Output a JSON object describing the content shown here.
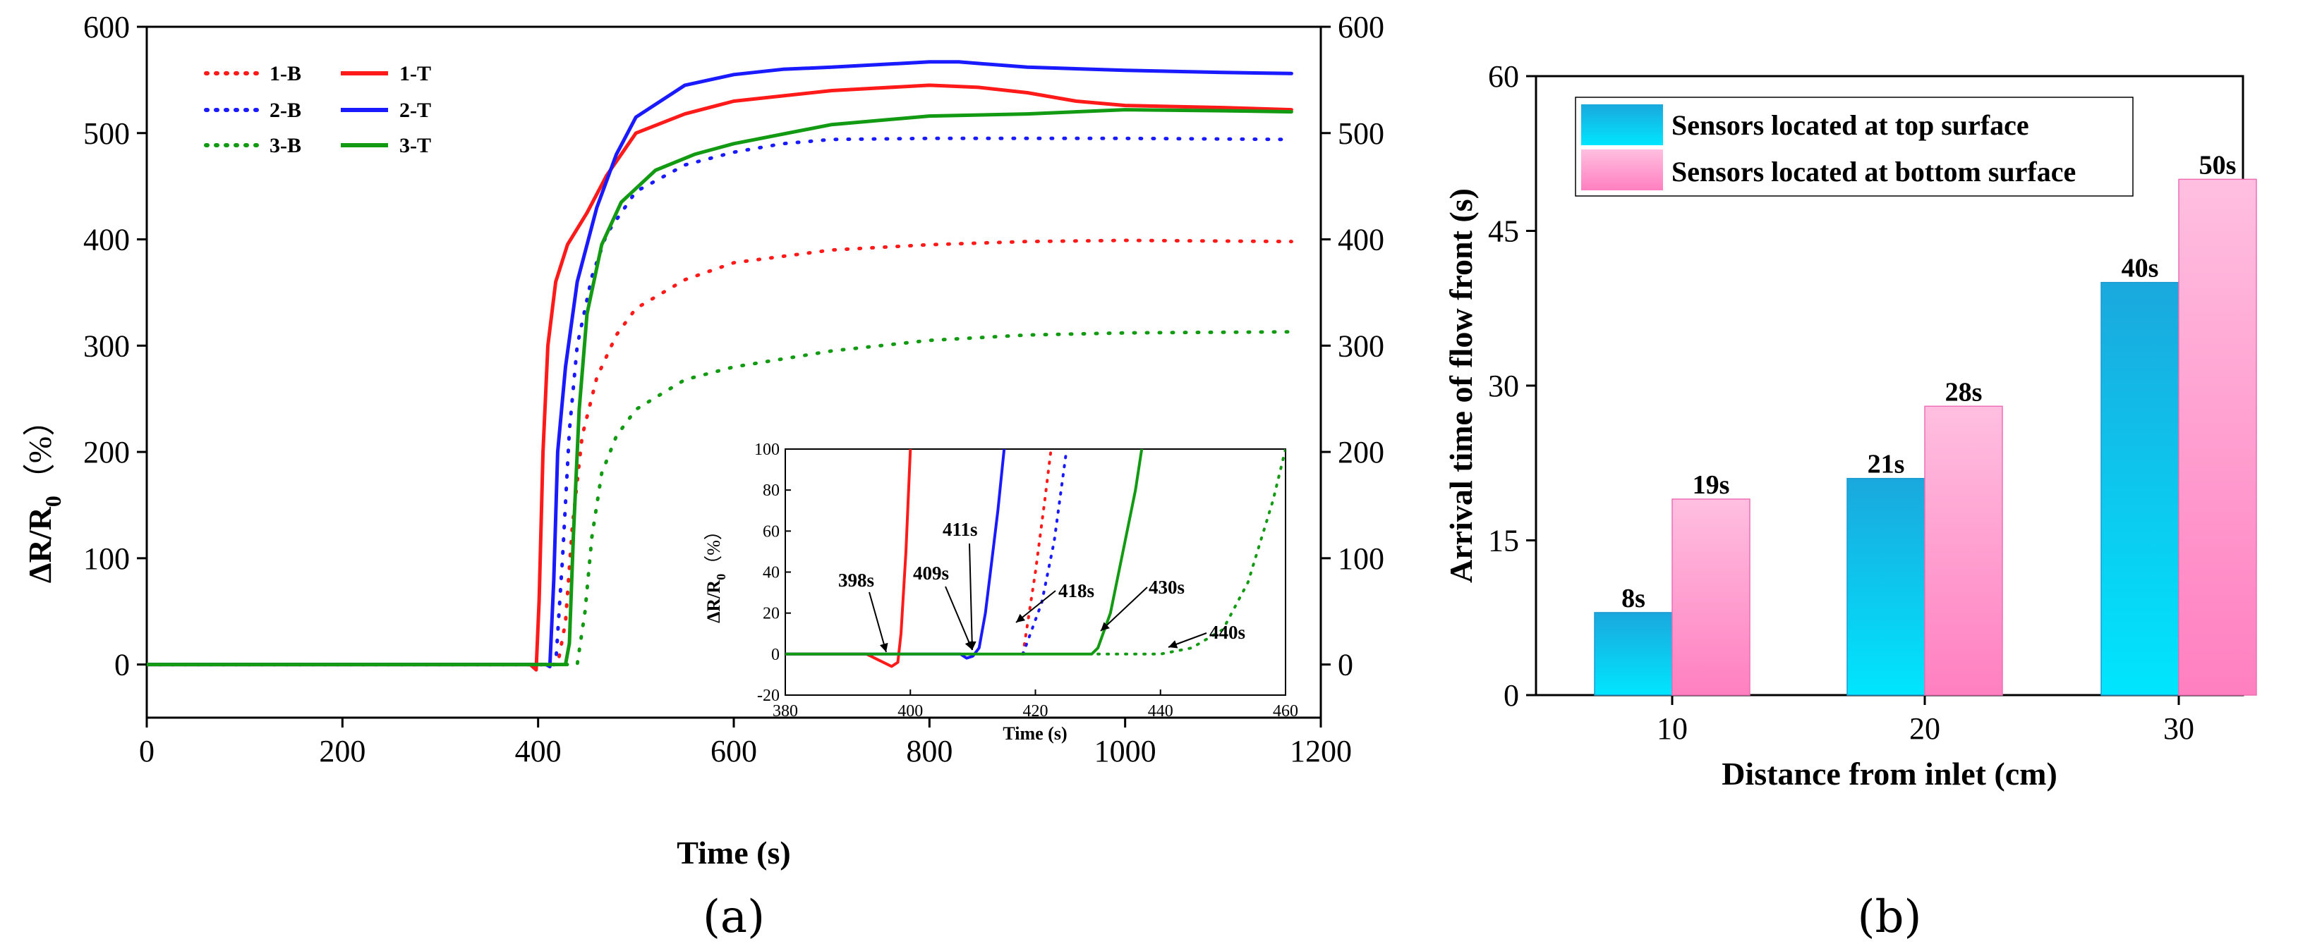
{
  "chart_data": [
    {
      "id": "a",
      "type": "line",
      "panel_label": "(a)",
      "xlabel": "Time (s)",
      "ylabel": "ΔR/R0（%）",
      "ylabel_main": "ΔR/R",
      "ylabel_sub": "0",
      "ylabel_unit": "（%）",
      "xlim": [
        0,
        1200
      ],
      "ylim": [
        -50,
        600
      ],
      "xticks": [
        0,
        200,
        400,
        600,
        800,
        1000,
        1200
      ],
      "yticks": [
        0,
        100,
        200,
        300,
        400,
        500,
        600
      ],
      "legend": {
        "placement": "top-left",
        "entries": [
          "1-B",
          "1-T",
          "2-B",
          "2-T",
          "3-B",
          "3-T"
        ]
      },
      "series": [
        {
          "name": "1-B",
          "color": "#ff1a1a",
          "style": "dotted",
          "points": [
            [
              0,
              0
            ],
            [
              420,
              0
            ],
            [
              428,
              40
            ],
            [
              435,
              130
            ],
            [
              445,
              215
            ],
            [
              460,
              270
            ],
            [
              480,
              310
            ],
            [
              500,
              335
            ],
            [
              550,
              362
            ],
            [
              600,
              378
            ],
            [
              700,
              390
            ],
            [
              800,
              395
            ],
            [
              900,
              398
            ],
            [
              1000,
              399
            ],
            [
              1170,
              398
            ]
          ]
        },
        {
          "name": "1-T",
          "color": "#ff1a1a",
          "style": "solid",
          "points": [
            [
              0,
              0
            ],
            [
              392,
              0
            ],
            [
              398,
              -5
            ],
            [
              401,
              60
            ],
            [
              405,
              200
            ],
            [
              410,
              300
            ],
            [
              418,
              360
            ],
            [
              430,
              395
            ],
            [
              450,
              425
            ],
            [
              470,
              460
            ],
            [
              500,
              500
            ],
            [
              550,
              518
            ],
            [
              600,
              530
            ],
            [
              700,
              540
            ],
            [
              800,
              545
            ],
            [
              850,
              543
            ],
            [
              900,
              538
            ],
            [
              950,
              530
            ],
            [
              1000,
              526
            ],
            [
              1100,
              524
            ],
            [
              1170,
              522
            ]
          ]
        },
        {
          "name": "2-B",
          "color": "#1a1aff",
          "style": "dotted",
          "points": [
            [
              0,
              0
            ],
            [
              418,
              0
            ],
            [
              425,
              100
            ],
            [
              432,
              220
            ],
            [
              440,
              300
            ],
            [
              455,
              365
            ],
            [
              470,
              405
            ],
            [
              500,
              445
            ],
            [
              550,
              470
            ],
            [
              600,
              482
            ],
            [
              650,
              490
            ],
            [
              700,
              494
            ],
            [
              800,
              495
            ],
            [
              900,
              495
            ],
            [
              1000,
              495
            ],
            [
              1170,
              494
            ]
          ]
        },
        {
          "name": "2-T",
          "color": "#1a1aff",
          "style": "solid",
          "points": [
            [
              0,
              0
            ],
            [
              408,
              0
            ],
            [
              412,
              -2
            ],
            [
              416,
              80
            ],
            [
              420,
              200
            ],
            [
              428,
              280
            ],
            [
              440,
              360
            ],
            [
              460,
              430
            ],
            [
              480,
              480
            ],
            [
              500,
              515
            ],
            [
              550,
              545
            ],
            [
              600,
              555
            ],
            [
              650,
              560
            ],
            [
              700,
              562
            ],
            [
              800,
              567
            ],
            [
              830,
              567
            ],
            [
              900,
              562
            ],
            [
              1000,
              559
            ],
            [
              1100,
              557
            ],
            [
              1170,
              556
            ]
          ]
        },
        {
          "name": "3-B",
          "color": "#129a12",
          "style": "dotted",
          "points": [
            [
              0,
              0
            ],
            [
              440,
              0
            ],
            [
              448,
              50
            ],
            [
              455,
              120
            ],
            [
              465,
              180
            ],
            [
              480,
              215
            ],
            [
              500,
              240
            ],
            [
              550,
              268
            ],
            [
              600,
              280
            ],
            [
              700,
              295
            ],
            [
              800,
              305
            ],
            [
              900,
              310
            ],
            [
              1000,
              312
            ],
            [
              1170,
              313
            ]
          ]
        },
        {
          "name": "3-T",
          "color": "#129a12",
          "style": "solid",
          "points": [
            [
              0,
              0
            ],
            [
              428,
              0
            ],
            [
              432,
              20
            ],
            [
              436,
              120
            ],
            [
              442,
              240
            ],
            [
              450,
              330
            ],
            [
              465,
              395
            ],
            [
              485,
              435
            ],
            [
              520,
              465
            ],
            [
              560,
              480
            ],
            [
              600,
              490
            ],
            [
              700,
              508
            ],
            [
              800,
              516
            ],
            [
              900,
              518
            ],
            [
              1000,
              522
            ],
            [
              1100,
              521
            ],
            [
              1170,
              520
            ]
          ]
        }
      ],
      "inset": {
        "xlabel": "Time (s)",
        "ylabel": "ΔR/R0（%）",
        "ylabel_main": "ΔR/R",
        "ylabel_sub": "0",
        "ylabel_unit": "（%）",
        "xlim": [
          380,
          460
        ],
        "ylim": [
          -20,
          100
        ],
        "xticks": [
          380,
          400,
          420,
          440,
          460
        ],
        "yticks": [
          -20,
          0,
          20,
          40,
          60,
          80,
          100
        ],
        "annotations": [
          {
            "text": "398s",
            "x": 398
          },
          {
            "text": "409s",
            "x": 409
          },
          {
            "text": "411s",
            "x": 411
          },
          {
            "text": "418s",
            "x": 418
          },
          {
            "text": "430s",
            "x": 430
          },
          {
            "text": "440s",
            "x": 440
          }
        ],
        "series": [
          {
            "name": "1-T",
            "color": "#ff1a1a",
            "style": "solid",
            "points": [
              [
                380,
                0
              ],
              [
                393,
                0
              ],
              [
                395,
                -3
              ],
              [
                397,
                -6
              ],
              [
                398,
                -4
              ],
              [
                398.5,
                10
              ],
              [
                399.3,
                50
              ],
              [
                400,
                100
              ]
            ]
          },
          {
            "name": "1-B",
            "color": "#ff1a1a",
            "style": "dotted",
            "points": [
              [
                418,
                0
              ],
              [
                420,
                40
              ],
              [
                421.5,
                75
              ],
              [
                422.5,
                100
              ]
            ]
          },
          {
            "name": "2-T",
            "color": "#1a1aff",
            "style": "solid",
            "points": [
              [
                380,
                0
              ],
              [
                408,
                0
              ],
              [
                409,
                -2
              ],
              [
                410,
                -1
              ],
              [
                411,
                3
              ],
              [
                412,
                20
              ],
              [
                413,
                45
              ],
              [
                414,
                70
              ],
              [
                415,
                100
              ]
            ]
          },
          {
            "name": "2-B",
            "color": "#1a1aff",
            "style": "dotted",
            "points": [
              [
                418,
                0
              ],
              [
                421,
                25
              ],
              [
                423,
                55
              ],
              [
                425,
                100
              ]
            ]
          },
          {
            "name": "3-T",
            "color": "#129a12",
            "style": "solid",
            "points": [
              [
                380,
                0
              ],
              [
                429,
                0
              ],
              [
                430,
                3
              ],
              [
                432,
                20
              ],
              [
                434,
                50
              ],
              [
                436,
                80
              ],
              [
                437,
                100
              ]
            ]
          },
          {
            "name": "3-B",
            "color": "#129a12",
            "style": "dotted",
            "points": [
              [
                430,
                0
              ],
              [
                440,
                0
              ],
              [
                445,
                3
              ],
              [
                450,
                12
              ],
              [
                454,
                35
              ],
              [
                458,
                75
              ],
              [
                460,
                100
              ]
            ]
          }
        ]
      }
    },
    {
      "id": "b",
      "type": "bar",
      "panel_label": "(b)",
      "xlabel": "Distance from inlet (cm)",
      "ylabel": "Arrival time of flow front (s)",
      "categories": [
        "10",
        "20",
        "30"
      ],
      "ylim": [
        0,
        60
      ],
      "yticks": [
        0,
        15,
        30,
        45,
        60
      ],
      "legend": {
        "placement": "top-left",
        "entries": [
          "Sensors located at top surface",
          "Sensors located at bottom surface"
        ]
      },
      "series": [
        {
          "name": "Sensors located at top surface",
          "values": [
            8,
            21,
            40
          ],
          "labels": [
            "8s",
            "21s",
            "40s"
          ],
          "color_top": "#1aa8dd",
          "color_bottom": "#00e6ff"
        },
        {
          "name": "Sensors located at bottom surface",
          "values": [
            19,
            28,
            50
          ],
          "labels": [
            "19s",
            "28s",
            "50s"
          ],
          "color_top": "#ffbfe0",
          "color_bottom": "#ff7fc0"
        }
      ]
    }
  ]
}
